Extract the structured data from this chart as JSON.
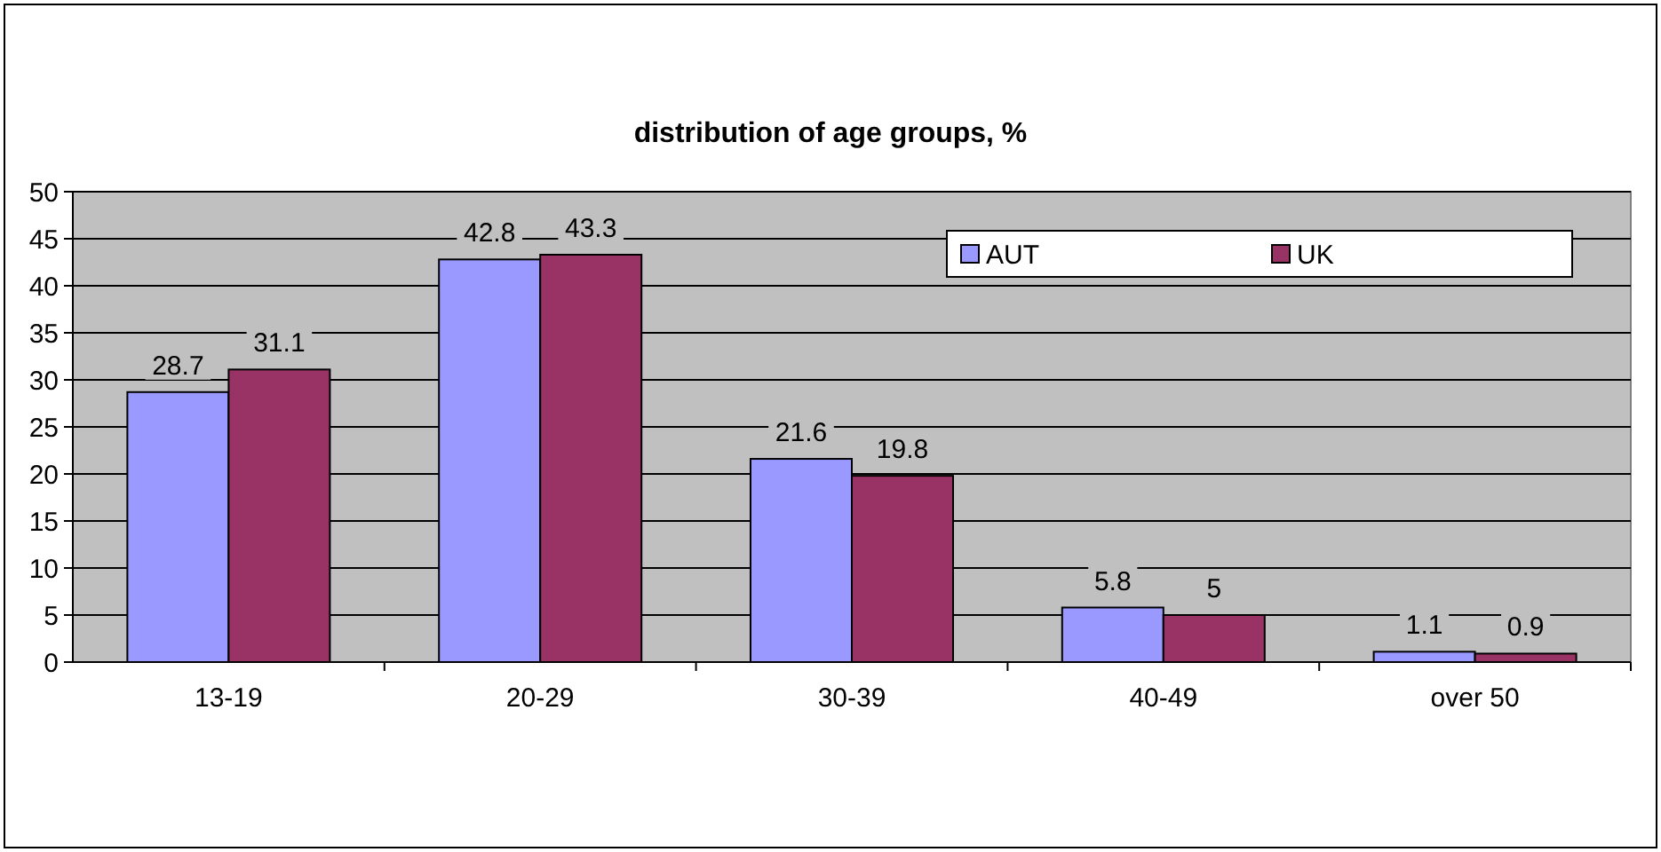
{
  "chart_data": {
    "type": "bar",
    "title": "distribution of age groups, %",
    "categories": [
      "13-19",
      "20-29",
      "30-39",
      "40-49",
      "over 50"
    ],
    "series": [
      {
        "name": "AUT",
        "color": "#9999ff",
        "values": [
          28.7,
          42.8,
          21.6,
          5.8,
          1.1
        ]
      },
      {
        "name": "UK",
        "color": "#993366",
        "values": [
          31.1,
          43.3,
          19.8,
          5,
          0.9
        ]
      }
    ],
    "ylim": [
      0,
      50
    ],
    "yticks": [
      0,
      5,
      10,
      15,
      20,
      25,
      30,
      35,
      40,
      45,
      50
    ],
    "grid": "y",
    "legend": "top right",
    "data_labels": true
  }
}
